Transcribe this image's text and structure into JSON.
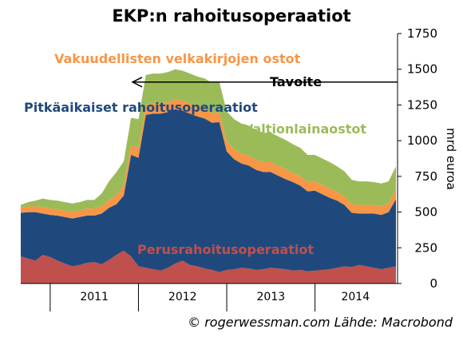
{
  "chart_data": {
    "type": "area",
    "title": "EKP:n rahoitusoperaatiot",
    "ylabel": "mrd euroa",
    "ylim": [
      0,
      1750
    ],
    "yticks": [
      0,
      250,
      500,
      750,
      1000,
      1250,
      1500,
      1750
    ],
    "xticklabels": [
      "2011",
      "2012",
      "2013",
      "2014"
    ],
    "stacked": true,
    "grid": false,
    "x": [
      "2010-09",
      "2010-10",
      "2010-11",
      "2010-12",
      "2011-01",
      "2011-02",
      "2011-03",
      "2011-04",
      "2011-05",
      "2011-06",
      "2011-07",
      "2011-08",
      "2011-09",
      "2011-10",
      "2011-11",
      "2011-12",
      "2012-01",
      "2012-02",
      "2012-03",
      "2012-04",
      "2012-05",
      "2012-06",
      "2012-07",
      "2012-08",
      "2012-09",
      "2012-10",
      "2012-11",
      "2012-12",
      "2013-01",
      "2013-02",
      "2013-03",
      "2013-04",
      "2013-05",
      "2013-06",
      "2013-07",
      "2013-08",
      "2013-09",
      "2013-10",
      "2013-11",
      "2013-12",
      "2014-01",
      "2014-02",
      "2014-03",
      "2014-04",
      "2014-05",
      "2014-06",
      "2014-07",
      "2014-08",
      "2014-09",
      "2014-10",
      "2014-11",
      "2014-12"
    ],
    "series": [
      {
        "name": "Perusrahoitusoperaatiot",
        "color": "#c0504d",
        "values": [
          190,
          175,
          160,
          200,
          185,
          160,
          140,
          120,
          130,
          145,
          150,
          135,
          165,
          200,
          230,
          190,
          120,
          110,
          100,
          90,
          110,
          140,
          160,
          130,
          120,
          105,
          95,
          80,
          95,
          100,
          110,
          105,
          95,
          100,
          110,
          105,
          100,
          90,
          95,
          85,
          90,
          95,
          100,
          110,
          120,
          115,
          130,
          120,
          110,
          100,
          110,
          120
        ]
      },
      {
        "name": "Pitkäaikaiset rahoitusoperaatiot",
        "color": "#1f497d",
        "values": [
          305,
          325,
          340,
          290,
          295,
          315,
          325,
          335,
          335,
          330,
          325,
          355,
          365,
          355,
          385,
          710,
          760,
          1070,
          1090,
          1100,
          1090,
          1080,
          1050,
          1060,
          1050,
          1050,
          1030,
          1050,
          830,
          770,
          730,
          720,
          700,
          680,
          670,
          650,
          630,
          620,
          590,
          560,
          560,
          530,
          500,
          470,
          430,
          380,
          360,
          370,
          380,
          380,
          390,
          470
        ]
      },
      {
        "name": "Vakuudellisten velkakirjojen ostot",
        "color": "#f79646",
        "values": [
          35,
          40,
          40,
          45,
          45,
          45,
          45,
          45,
          45,
          50,
          50,
          50,
          55,
          65,
          70,
          70,
          70,
          70,
          70,
          70,
          70,
          70,
          70,
          70,
          70,
          70,
          70,
          70,
          70,
          70,
          70,
          70,
          70,
          70,
          70,
          70,
          70,
          65,
          65,
          65,
          65,
          65,
          65,
          60,
          60,
          60,
          60,
          60,
          60,
          60,
          60,
          70
        ]
      },
      {
        "name": "Valtionlainaostot",
        "color": "#9bbb59",
        "values": [
          20,
          30,
          40,
          60,
          60,
          60,
          60,
          60,
          60,
          60,
          60,
          90,
          130,
          160,
          170,
          190,
          200,
          210,
          210,
          210,
          210,
          210,
          210,
          210,
          210,
          210,
          210,
          210,
          210,
          210,
          210,
          210,
          210,
          205,
          205,
          205,
          205,
          200,
          200,
          190,
          185,
          185,
          185,
          180,
          175,
          170,
          165,
          165,
          160,
          160,
          155,
          160
        ]
      }
    ],
    "annotations": [
      {
        "text": "Vakuudellisten velkakirjojen ostot",
        "color": "#f79646"
      },
      {
        "text": "Tavoite",
        "color": "#000000"
      },
      {
        "text": "Pitkäaikaiset rahoitusoperaatiot",
        "color": "#1f497d"
      },
      {
        "text": "Valtionlainaostot",
        "color": "#9bbb59"
      },
      {
        "text": "Perusrahoitusoperaatiot",
        "color": "#c0504d"
      }
    ],
    "target_value": 1410
  },
  "credit": "© rogerwessman.com Lähde: Macrobond"
}
